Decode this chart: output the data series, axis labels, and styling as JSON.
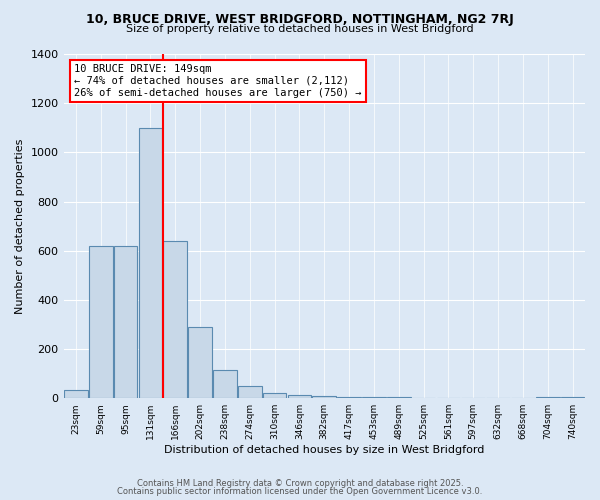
{
  "title_line1": "10, BRUCE DRIVE, WEST BRIDGFORD, NOTTINGHAM, NG2 7RJ",
  "title_line2": "Size of property relative to detached houses in West Bridgford",
  "bar_labels": [
    "23sqm",
    "59sqm",
    "95sqm",
    "131sqm",
    "166sqm",
    "202sqm",
    "238sqm",
    "274sqm",
    "310sqm",
    "346sqm",
    "382sqm",
    "417sqm",
    "453sqm",
    "489sqm",
    "525sqm",
    "561sqm",
    "597sqm",
    "632sqm",
    "668sqm",
    "704sqm",
    "740sqm"
  ],
  "bar_values": [
    35,
    620,
    620,
    1100,
    640,
    290,
    115,
    50,
    20,
    15,
    10,
    5,
    5,
    3,
    2,
    2,
    0,
    0,
    0,
    5,
    5
  ],
  "bar_color": "#c8d8e8",
  "bar_edgecolor": "#5a8ab0",
  "property_line_x": 4,
  "property_line_color": "red",
  "annotation_title": "10 BRUCE DRIVE: 149sqm",
  "annotation_line1": "← 74% of detached houses are smaller (2,112)",
  "annotation_line2": "26% of semi-detached houses are larger (750) →",
  "annotation_box_color": "red",
  "xlabel": "Distribution of detached houses by size in West Bridgford",
  "ylabel": "Number of detached properties",
  "ylim": [
    0,
    1400
  ],
  "yticks": [
    0,
    200,
    400,
    600,
    800,
    1000,
    1200,
    1400
  ],
  "footer_line1": "Contains HM Land Registry data © Crown copyright and database right 2025.",
  "footer_line2": "Contains public sector information licensed under the Open Government Licence v3.0.",
  "background_color": "#dce8f5",
  "plot_background": "#dce8f5",
  "n_bins": 21,
  "bin_width": 36
}
